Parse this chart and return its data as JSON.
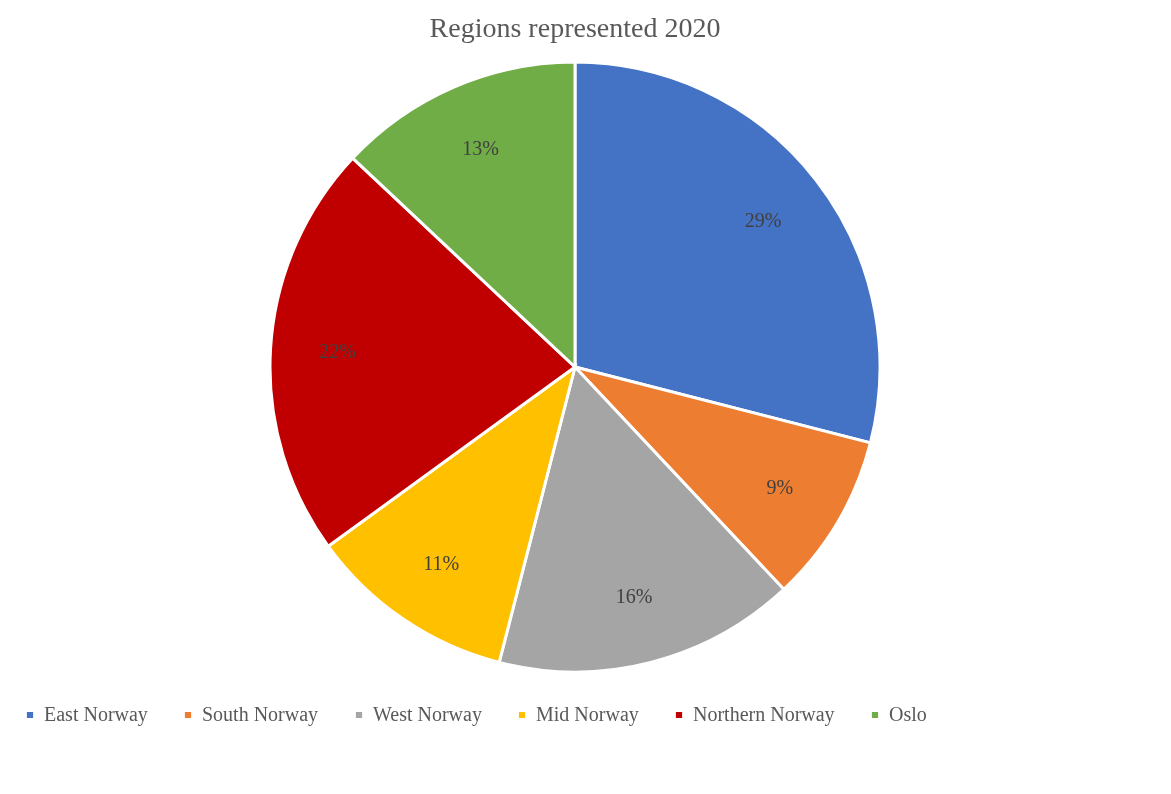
{
  "chart_data": {
    "type": "pie",
    "title": "Regions represented 2020",
    "categories": [
      "East Norway",
      "South Norway",
      "West Norway",
      "Mid Norway",
      "Northern Norway",
      "Oslo"
    ],
    "values": [
      29,
      9,
      16,
      11,
      22,
      13
    ],
    "colors": [
      "#4472c4",
      "#ed7d31",
      "#a5a5a5",
      "#ffc000",
      "#c00000",
      "#70ad47"
    ],
    "value_labels": [
      "29%",
      "9%",
      "16%",
      "11%",
      "22%",
      "13%"
    ],
    "legend": "bottom"
  }
}
